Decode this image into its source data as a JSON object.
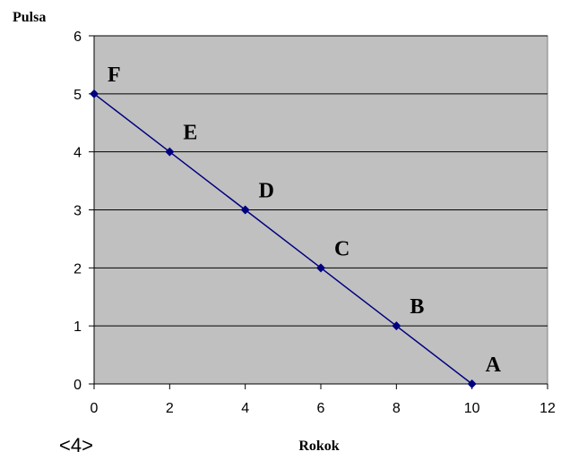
{
  "chart_data": {
    "type": "line",
    "title": "",
    "xlabel": "Rokok",
    "ylabel": "Pulsa",
    "xlim": [
      0,
      12
    ],
    "ylim": [
      0,
      6
    ],
    "x_ticks": [
      0,
      2,
      4,
      6,
      8,
      10,
      12
    ],
    "y_ticks": [
      0,
      1,
      2,
      3,
      4,
      5,
      6
    ],
    "grid": "horizontal",
    "legend": "none",
    "series": [
      {
        "points": [
          {
            "label": "F",
            "x": 0,
            "y": 5
          },
          {
            "label": "E",
            "x": 2,
            "y": 4
          },
          {
            "label": "D",
            "x": 4,
            "y": 3
          },
          {
            "label": "C",
            "x": 6,
            "y": 2
          },
          {
            "label": "B",
            "x": 8,
            "y": 1
          },
          {
            "label": "A",
            "x": 10,
            "y": 0
          }
        ]
      }
    ],
    "annotation": "<4>",
    "colors": {
      "plot_background": "#c0c0c0",
      "line": "#000080",
      "marker": "#000080",
      "gridline": "#000000"
    }
  }
}
